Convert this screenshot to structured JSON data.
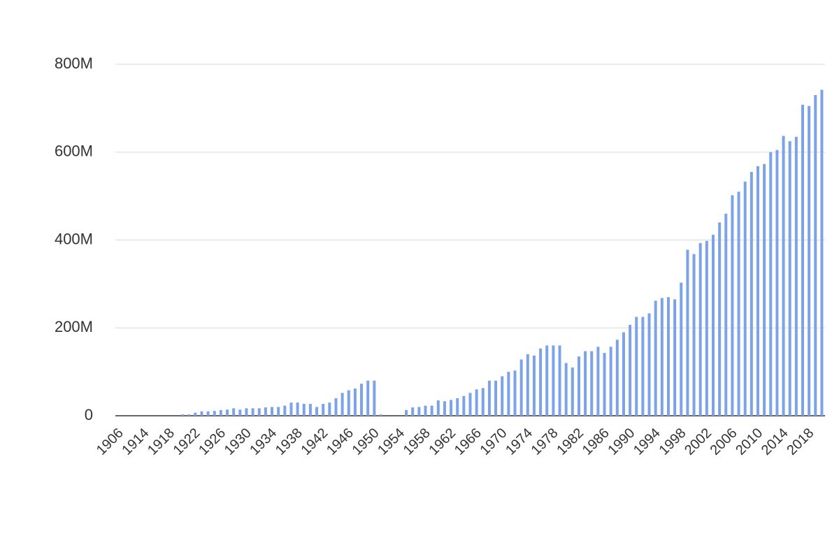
{
  "chart_data": {
    "type": "bar",
    "categories": [
      "1906",
      null,
      null,
      null,
      "1914",
      null,
      null,
      null,
      "1918",
      null,
      null,
      null,
      "1922",
      null,
      null,
      null,
      "1926",
      null,
      null,
      null,
      "1930",
      null,
      null,
      null,
      "1934",
      null,
      null,
      null,
      "1938",
      null,
      null,
      null,
      "1942",
      null,
      null,
      null,
      "1946",
      null,
      null,
      null,
      "1950",
      null,
      null,
      null,
      "1954",
      null,
      null,
      null,
      "1958",
      null,
      null,
      null,
      "1962",
      null,
      null,
      null,
      "1966",
      null,
      null,
      null,
      "1970",
      null,
      null,
      null,
      "1974",
      null,
      null,
      null,
      "1978",
      null,
      null,
      null,
      "1982",
      null,
      null,
      null,
      "1986",
      null,
      null,
      null,
      "1990",
      null,
      null,
      null,
      "1994",
      null,
      null,
      null,
      "1998",
      null,
      null,
      null,
      "2002",
      null,
      null,
      null,
      "2006",
      null,
      null,
      null,
      "2010",
      null,
      null,
      null,
      "2014",
      null,
      null,
      null,
      "2018",
      null,
      null
    ],
    "values": [
      null,
      null,
      null,
      null,
      null,
      null,
      null,
      null,
      null,
      null,
      3000000,
      3000000,
      7000000,
      10000000,
      10000000,
      11000000,
      13000000,
      14000000,
      17000000,
      14000000,
      17000000,
      17000000,
      17000000,
      19000000,
      20000000,
      20000000,
      23000000,
      30000000,
      30000000,
      27000000,
      27000000,
      20000000,
      27000000,
      30000000,
      40000000,
      52000000,
      58000000,
      62000000,
      73000000,
      80000000,
      80000000,
      3000000,
      null,
      null,
      null,
      13000000,
      19000000,
      20000000,
      23000000,
      23000000,
      35000000,
      33000000,
      36000000,
      40000000,
      45000000,
      52000000,
      60000000,
      63000000,
      80000000,
      80000000,
      90000000,
      100000000,
      103000000,
      128000000,
      140000000,
      137000000,
      153000000,
      160000000,
      160000000,
      160000000,
      120000000,
      110000000,
      135000000,
      147000000,
      147000000,
      157000000,
      143000000,
      157000000,
      173000000,
      190000000,
      207000000,
      225000000,
      225000000,
      233000000,
      262000000,
      268000000,
      270000000,
      265000000,
      303000000,
      378000000,
      368000000,
      393000000,
      398000000,
      412000000,
      440000000,
      460000000,
      502000000,
      510000000,
      533000000,
      555000000,
      568000000,
      573000000,
      600000000,
      605000000,
      637000000,
      625000000,
      635000000,
      708000000,
      705000000,
      730000000,
      742000000
    ],
    "color": "#7ca2e8",
    "ylim": [
      0,
      800000000
    ],
    "yticks": [
      0,
      {
        "value": 200000000,
        "label": "200M"
      },
      {
        "value": 400000000,
        "label": "400M"
      },
      {
        "value": 600000000,
        "label": "600M"
      },
      {
        "value": 800000000,
        "label": "800M"
      }
    ],
    "grid": true
  }
}
